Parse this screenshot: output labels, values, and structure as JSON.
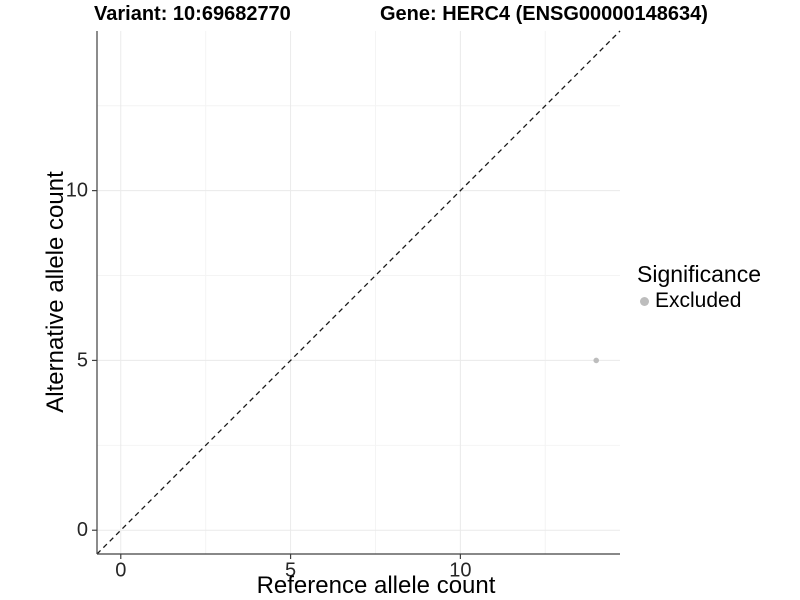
{
  "chart_data": {
    "type": "scatter",
    "titles": {
      "left": "Variant: 10:69682770",
      "right": "Gene: HERC4 (ENSG00000148634)"
    },
    "xlabel": "Reference allele count",
    "ylabel": "Alternative allele count",
    "xlim": [
      -0.7,
      14.7
    ],
    "ylim": [
      -0.7,
      14.7
    ],
    "x_major_ticks": [
      0,
      5,
      10
    ],
    "x_minor_ticks": [
      2.5,
      7.5,
      12.5
    ],
    "y_major_ticks": [
      0,
      5,
      10
    ],
    "y_minor_ticks": [
      2.5,
      7.5,
      12.5
    ],
    "grid": "major and minor, light gray, no panel border",
    "reference_line": {
      "type": "identity y=x",
      "style": "dashed"
    },
    "series": [
      {
        "name": "Excluded",
        "color": "#bdbdbd",
        "point_radius": 2.8,
        "points": [
          {
            "x": 14,
            "y": 5
          }
        ]
      }
    ],
    "legend": {
      "title": "Significance",
      "position": "right",
      "entries": [
        {
          "label": "Excluded",
          "color": "#bdbdbd"
        }
      ]
    }
  },
  "colors": {
    "background": "#ffffff",
    "grid_major": "#eaeaea",
    "grid_minor": "#f4f4f4",
    "axis_line": "#404040",
    "tick_label": "#262626",
    "reference_line": "#1a1a1a"
  }
}
